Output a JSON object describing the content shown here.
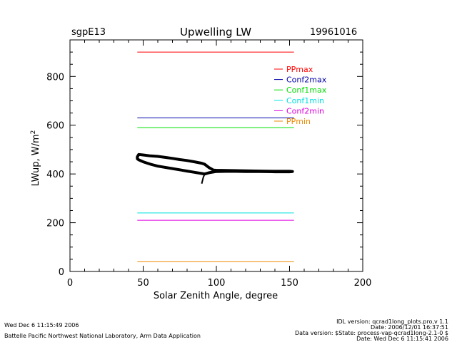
{
  "header": {
    "site": "sgpE13",
    "title": "Upwelling LW",
    "date": "19961016"
  },
  "footer": {
    "left_line1": "Wed Dec  6 11:15:49 2006",
    "left_line2": "Battelle Pacific Northwest National Laboratory, Arm Data Application",
    "right_line1": "IDL version: qcrad1long_plots.pro,v 1.1",
    "right_line2": "Date: 2006/12/01 16:37:51",
    "right_line3": "Data version: $State: process-vap-qcrad1long-2.1-0 $",
    "right_line4": "Date: Wed Dec  6 11:15:41 2006"
  },
  "chart_data": {
    "type": "line",
    "title": "Upwelling LW",
    "xlabel": "Solar Zenith Angle, degree",
    "ylabel": "LWup, W/m",
    "ylabel_superscript": "2",
    "xlim": [
      0,
      200
    ],
    "ylim": [
      0,
      950
    ],
    "xticks": [
      0,
      50,
      100,
      150,
      200
    ],
    "yticks": [
      0,
      200,
      400,
      600,
      800
    ],
    "xtick_labels": [
      "0",
      "50",
      "100",
      "150",
      "200"
    ],
    "ytick_labels": [
      "0",
      "200",
      "400",
      "600",
      "800"
    ],
    "legend_position": "top-right",
    "limits": [
      {
        "name": "PPmax",
        "value": 900,
        "color": "#ff0000",
        "x_range": [
          46,
          153
        ]
      },
      {
        "name": "Conf2max",
        "value": 630,
        "color": "#0000aa",
        "x_range": [
          46,
          153
        ]
      },
      {
        "name": "Conf1max",
        "value": 590,
        "color": "#00e000",
        "x_range": [
          46,
          153
        ]
      },
      {
        "name": "Conf1min",
        "value": 240,
        "color": "#00e0e0",
        "x_range": [
          46,
          153
        ]
      },
      {
        "name": "Conf2min",
        "value": 210,
        "color": "#e000e0",
        "x_range": [
          46,
          153
        ]
      },
      {
        "name": "PPmin",
        "value": 40,
        "color": "#ee8800",
        "x_range": [
          46,
          153
        ]
      }
    ],
    "series": [
      {
        "color": "#000000",
        "points": [
          [
            46,
            470
          ],
          [
            47,
            480
          ],
          [
            50,
            478
          ],
          [
            55,
            474
          ],
          [
            60,
            472
          ],
          [
            65,
            468
          ],
          [
            70,
            464
          ],
          [
            75,
            459
          ],
          [
            80,
            455
          ],
          [
            85,
            450
          ],
          [
            90,
            444
          ],
          [
            92,
            440
          ],
          [
            95,
            426
          ],
          [
            98,
            416
          ],
          [
            100,
            415
          ],
          [
            110,
            414
          ],
          [
            120,
            413
          ],
          [
            130,
            412
          ],
          [
            140,
            411
          ],
          [
            150,
            411
          ],
          [
            152,
            410
          ],
          [
            150,
            409
          ],
          [
            140,
            409
          ],
          [
            130,
            410
          ],
          [
            120,
            410
          ],
          [
            110,
            411
          ],
          [
            100,
            410
          ],
          [
            95,
            405
          ],
          [
            92,
            400
          ],
          [
            90,
            402
          ],
          [
            85,
            407
          ],
          [
            80,
            412
          ],
          [
            70,
            422
          ],
          [
            60,
            432
          ],
          [
            55,
            440
          ],
          [
            50,
            450
          ],
          [
            47,
            458
          ],
          [
            46,
            462
          ]
        ],
        "spike": [
          [
            92,
            400
          ],
          [
            91,
            385
          ],
          [
            90,
            360
          ]
        ]
      }
    ]
  }
}
